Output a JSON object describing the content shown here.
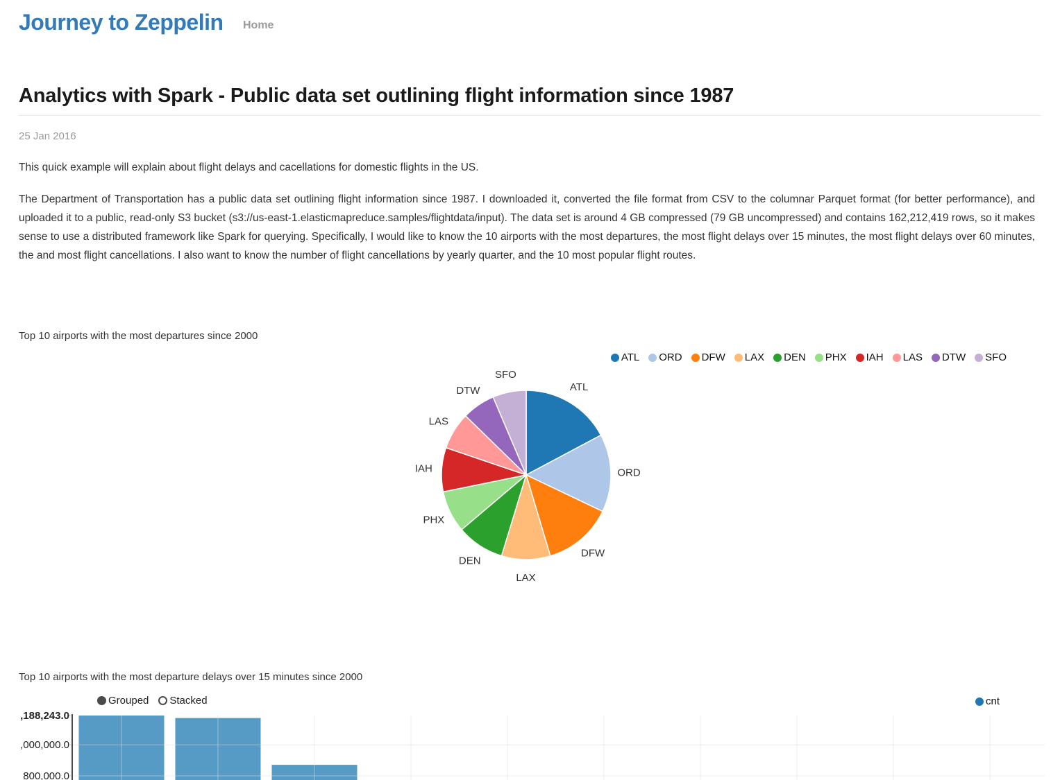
{
  "site": {
    "title": "Journey to Zeppelin",
    "nav": [
      {
        "label": "Home"
      }
    ]
  },
  "post": {
    "title": "Analytics with Spark - Public data set outlining flight information since 1987",
    "date": "25 Jan 2016",
    "paragraphs": [
      "This quick example will explain about flight delays and cacellations for domestic flights in the US.",
      "The Department of Transportation has a public data set outlining flight information since 1987. I downloaded it, converted the file format from CSV to the columnar Parquet format (for better performance), and uploaded it to a public, read-only S3 bucket (s3://us-east-1.elasticmapreduce.samples/flightdata/input). The data set is around 4 GB compressed (79 GB uncompressed) and contains 162,212,419 rows, so it makes sense to use a distributed framework like Spark for querying. Specifically, I would like to know the 10 airports with the most departures, the most flight delays over 15 minutes, the most flight delays over 60 minutes, the and most flight cancellations. I also want to know the number of flight cancellations by yearly quarter, and the 10 most popular flight routes."
    ]
  },
  "chart_data": [
    {
      "type": "pie",
      "title": "Top 10 airports with the most departures since 2000",
      "categories": [
        "ATL",
        "ORD",
        "DFW",
        "LAX",
        "DEN",
        "PHX",
        "IAH",
        "LAS",
        "DTW",
        "SFO"
      ],
      "values_percent": [
        17.2,
        14.9,
        13.3,
        9.3,
        9.1,
        8.0,
        8.4,
        7.1,
        6.3,
        6.4
      ],
      "colors": [
        "#1f77b4",
        "#aec7e8",
        "#ff7f0e",
        "#ffbb78",
        "#2ca02c",
        "#98df8a",
        "#d62728",
        "#ff9896",
        "#9467bd",
        "#c5b0d5"
      ],
      "legend_position": "top-right",
      "label_placement": "outside"
    },
    {
      "type": "bar",
      "title": "Top 10 airports with the most departure delays over 15 minutes since 2000",
      "categories": [
        "",
        "",
        ""
      ],
      "series": [
        {
          "name": "cnt",
          "color": "#1f77b4",
          "values": [
            1188243,
            1172000,
            871000
          ]
        }
      ],
      "bar_fill": "#569ac6",
      "ylim": [
        800000,
        1188243
      ],
      "grid": true,
      "y_ticks": [
        {
          "value": 1188243,
          "label": ",188,243.0",
          "bold": true
        },
        {
          "value": 1000000,
          "label": ",000,000.0",
          "bold": false
        },
        {
          "value": 800000,
          "label": "800,000.0",
          "bold": false
        }
      ],
      "controls": {
        "options": [
          "Grouped",
          "Stacked"
        ],
        "selected": "Grouped"
      },
      "legend": [
        {
          "label": "cnt",
          "color": "#1f77b4"
        }
      ]
    }
  ],
  "colors": {
    "brand": "#337ab7",
    "muted": "#9b9b9b",
    "text": "#333333",
    "grid": "#dcdcdc",
    "axis": "#4d4d4d"
  }
}
